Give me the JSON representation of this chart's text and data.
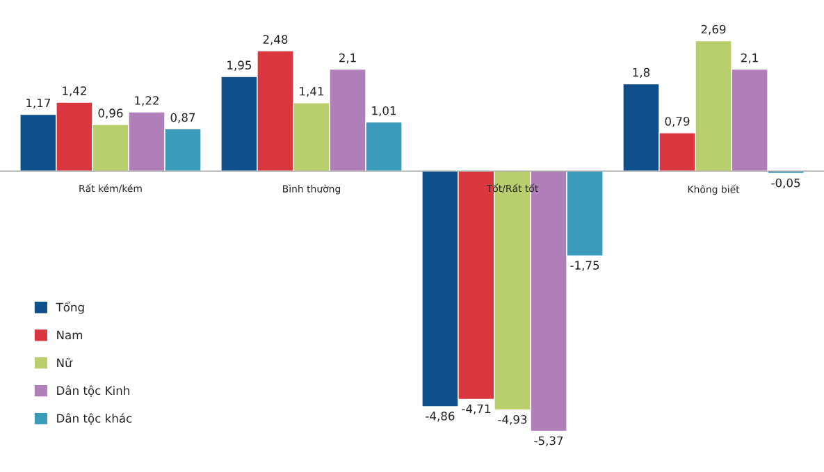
{
  "chart_data": {
    "type": "bar",
    "categories": [
      "Rất kém/kém",
      "Bình thường",
      "Tốt/Rất tốt",
      "Không biết"
    ],
    "series": [
      {
        "name": "Tổng",
        "color": "#0f4f8c",
        "values": [
          1.17,
          1.95,
          -4.86,
          1.8
        ],
        "value_labels": [
          "1,17",
          "1,95",
          "-4,86",
          "1,8"
        ]
      },
      {
        "name": "Nam",
        "color": "#d9363e",
        "values": [
          1.42,
          2.48,
          -4.71,
          0.79
        ],
        "value_labels": [
          "1,42",
          "2,48",
          "-4,71",
          "0,79"
        ]
      },
      {
        "name": "Nữ",
        "color": "#b9cf6e",
        "values": [
          0.96,
          1.41,
          -4.93,
          2.69
        ],
        "value_labels": [
          "0,96",
          "1,41",
          "-4,93",
          "2,69"
        ]
      },
      {
        "name": "Dân tộc Kinh",
        "color": "#b07fb9",
        "values": [
          1.22,
          2.1,
          -5.37,
          2.1
        ],
        "value_labels": [
          "1,22",
          "2,1",
          "-5,37",
          "2,1"
        ]
      },
      {
        "name": "Dân tộc khác",
        "color": "#3a9bba",
        "values": [
          0.87,
          1.01,
          -1.75,
          -0.05
        ],
        "value_labels": [
          "0,87",
          "1,01",
          "-1,75",
          "-0,05"
        ]
      }
    ],
    "legend": "lower left",
    "grid": false
  }
}
